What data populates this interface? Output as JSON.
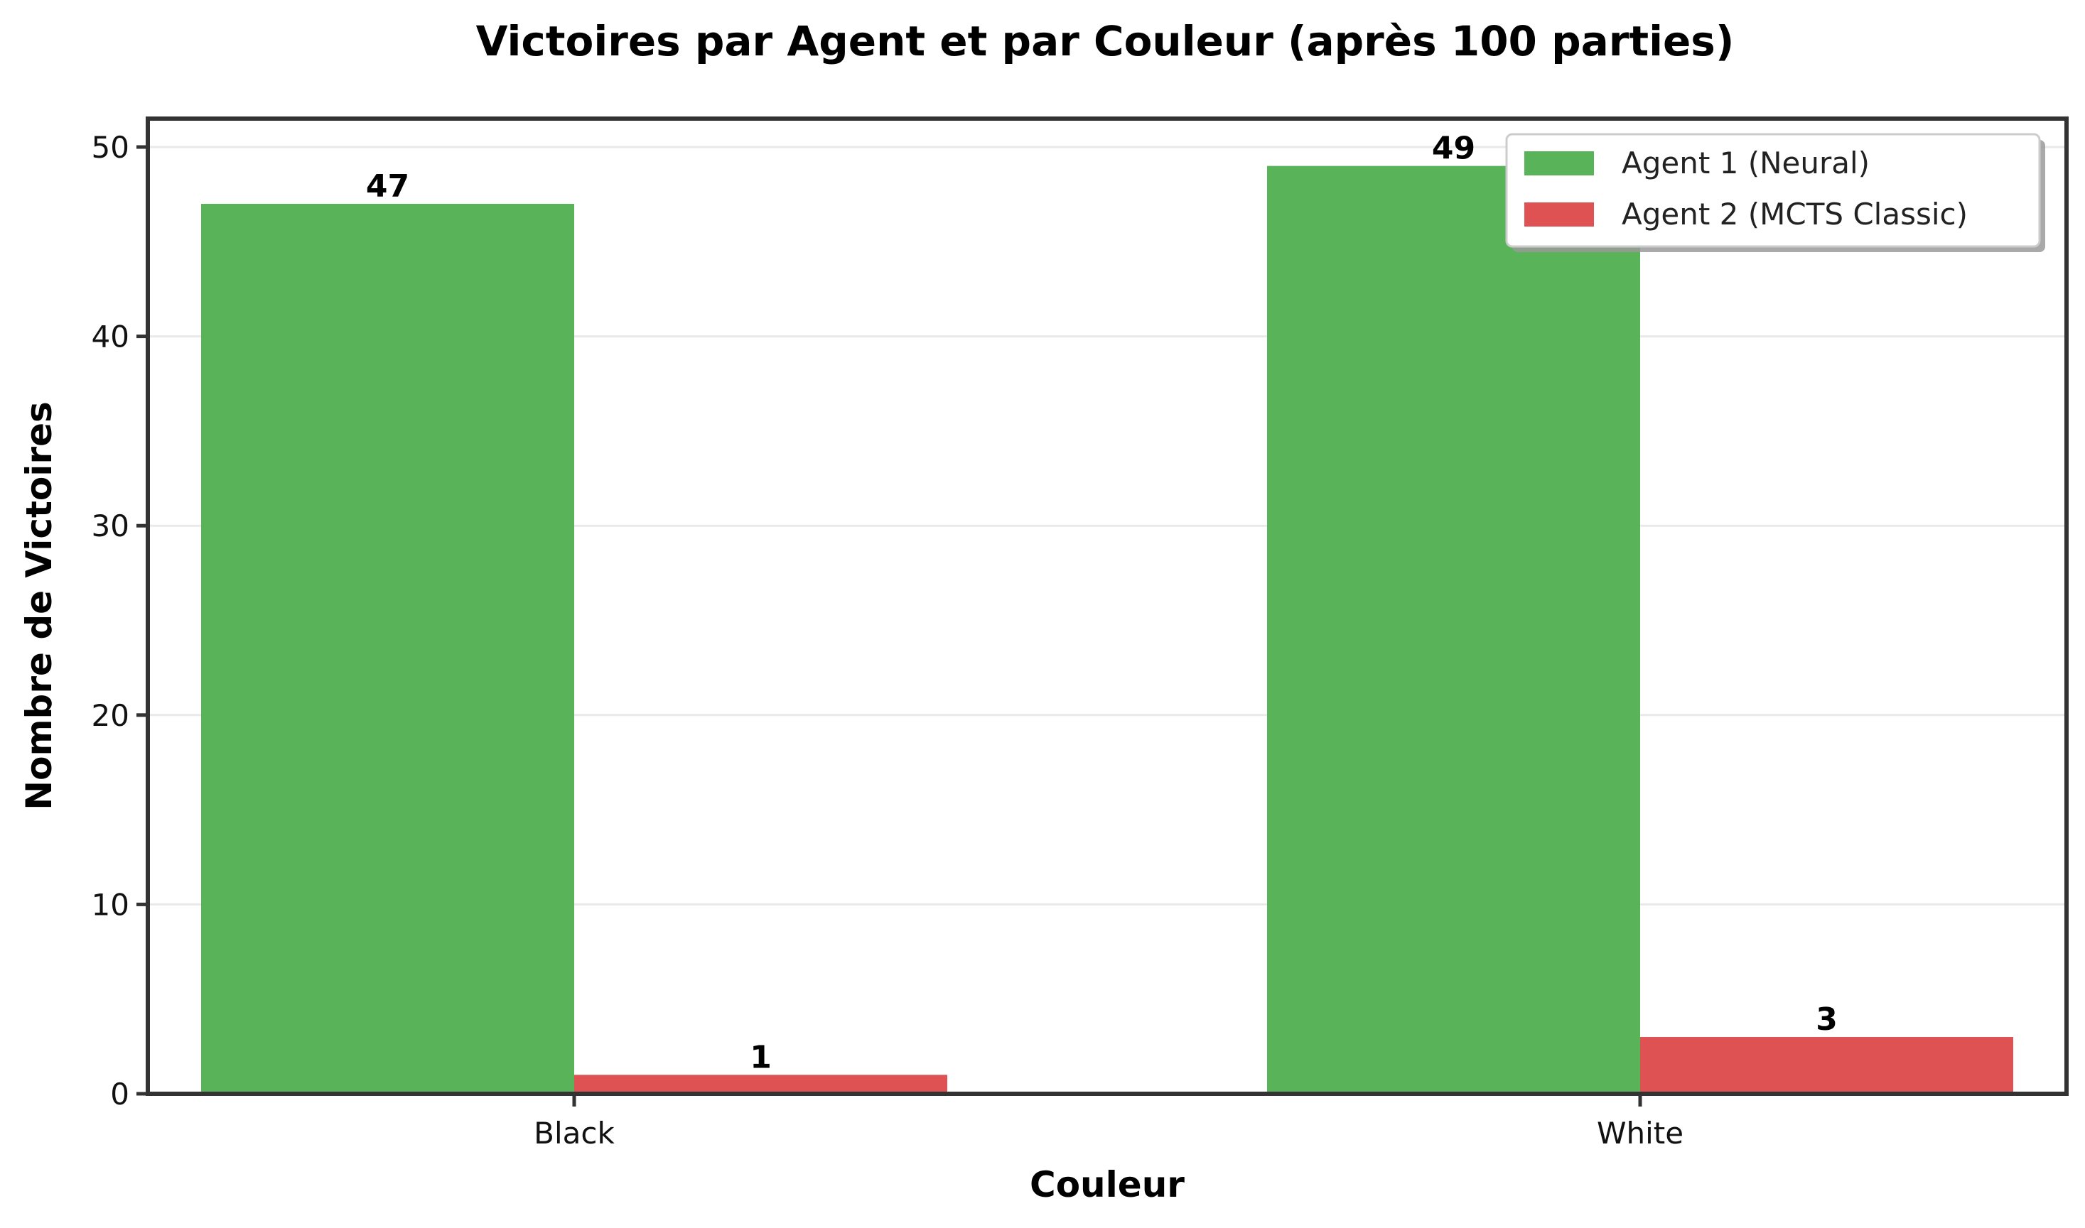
{
  "chart_data": {
    "type": "bar",
    "title": "Victoires par Agent et par Couleur (après 100 parties)",
    "xlabel": "Couleur",
    "ylabel": "Nombre de Victoires",
    "categories": [
      "Black",
      "White"
    ],
    "series": [
      {
        "name": "Agent 1 (Neural)",
        "values": [
          47,
          49
        ],
        "color": "#59b359"
      },
      {
        "name": "Agent 2 (MCTS Classic)",
        "values": [
          1,
          3
        ],
        "color": "#de5254"
      }
    ],
    "ylim": [
      0,
      51.5
    ],
    "yticks": [
      0,
      10,
      20,
      30,
      40,
      50
    ],
    "grid": "y",
    "legend": "top-right"
  }
}
